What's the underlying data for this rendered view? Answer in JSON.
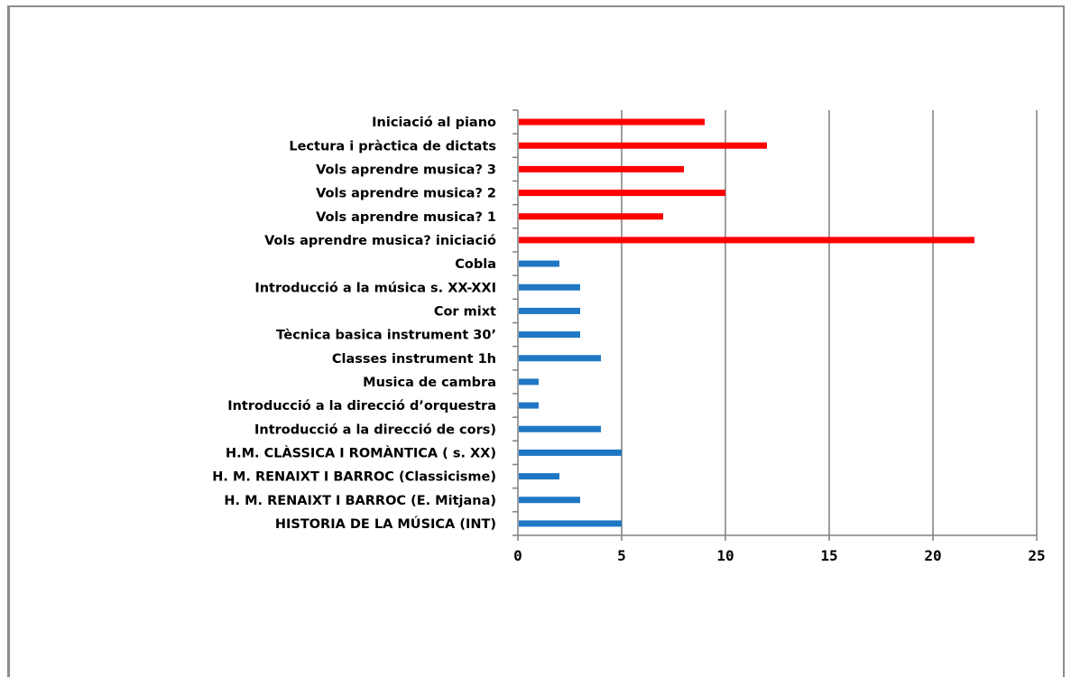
{
  "chart_data": {
    "type": "bar",
    "orientation": "horizontal",
    "categories": [
      "Iniciació al piano",
      "Lectura i pràctica de dictats",
      "Vols aprendre musica?  3",
      "Vols aprendre musica?  2",
      "Vols aprendre musica?  1",
      "Vols aprendre musica?  iniciació",
      "Cobla",
      "Introducció a la música s. XX-XXI",
      "Cor mixt",
      "Tècnica basica instrument 30’",
      "Classes instrument 1h",
      "Musica de cambra",
      "Introducció a la direcció d’orquestra",
      "Introducció a la direcció de cors)",
      "H.M. CLÀSSICA I ROMÀNTICA ( s. XX)",
      "H. M. RENAIXT I BARROC (Classicisme)",
      "H. M. RENAIXT I BARROC (E. Mitjana)",
      "HISTORIA DE LA MÚSICA (INT)"
    ],
    "values": [
      9,
      12,
      8,
      10,
      7,
      22,
      2,
      3,
      3,
      3,
      4,
      1,
      1,
      4,
      5,
      2,
      3,
      5
    ],
    "bar_colors": [
      "#ff0000",
      "#ff0000",
      "#ff0000",
      "#ff0000",
      "#ff0000",
      "#ff0000",
      "#1f77c4",
      "#1f77c4",
      "#1f77c4",
      "#1f77c4",
      "#1f77c4",
      "#1f77c4",
      "#1f77c4",
      "#1f77c4",
      "#1f77c4",
      "#1f77c4",
      "#1f77c4",
      "#1f77c4"
    ],
    "xlim": [
      0,
      25
    ],
    "xticks": [
      0,
      5,
      10,
      15,
      20,
      25
    ],
    "xtick_labels": [
      "0",
      "5",
      "10",
      "15",
      "20",
      "25"
    ],
    "grid": "vertical",
    "title": "",
    "xlabel": "",
    "ylabel": ""
  }
}
